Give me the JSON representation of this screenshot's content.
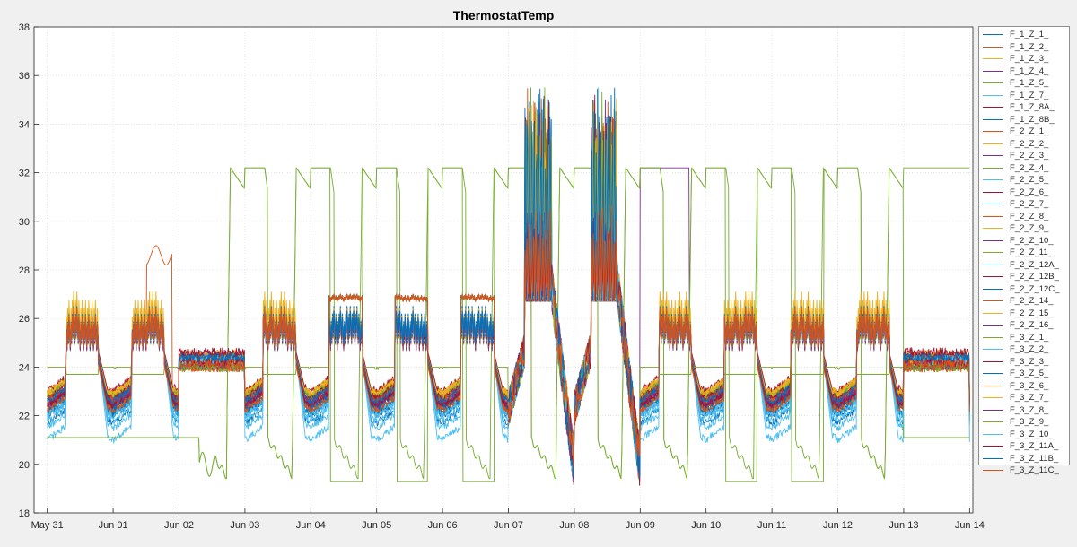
{
  "chart_data": {
    "type": "line",
    "title": "ThermostatTemp",
    "xlabel": "",
    "ylabel": "",
    "ylim": [
      18,
      38
    ],
    "yticks": [
      18,
      20,
      22,
      24,
      26,
      28,
      30,
      32,
      34,
      36,
      38
    ],
    "x_tick_labels": [
      "May 31",
      "Jun 01",
      "Jun 02",
      "Jun 03",
      "Jun 04",
      "Jun 05",
      "Jun 06",
      "Jun 07",
      "Jun 08",
      "Jun 09",
      "Jun 10",
      "Jun 11",
      "Jun 12",
      "Jun 13",
      "Jun 14"
    ],
    "xlim_days": [
      -0.2,
      14.05
    ],
    "grid": true,
    "legend_position": "outside-right",
    "series": [
      {
        "name": "F_1_Z_1_",
        "color": "#0072bd",
        "base": 24.3,
        "amp": 2.3,
        "dip": 21.7,
        "extra": "none"
      },
      {
        "name": "F_1_Z_2_",
        "color": "#d95319",
        "base": 24.0,
        "amp": 2.6,
        "dip": 22.2,
        "extra": "spike2"
      },
      {
        "name": "F_1_Z_3_",
        "color": "#edb120",
        "base": 24.2,
        "amp": 2.4,
        "dip": 22.5,
        "extra": "none"
      },
      {
        "name": "F_1_Z_4_",
        "color": "#7e2f8e",
        "base": 24.1,
        "amp": 2.2,
        "dip": 22.8,
        "extra": "plateau"
      },
      {
        "name": "F_1_Z_5_",
        "color": "#77ac30",
        "base": 24.0,
        "amp": 0.0,
        "dip": 24.0,
        "extra": "setback"
      },
      {
        "name": "F_1_Z_7_",
        "color": "#4dbeee",
        "base": 24.4,
        "amp": 2.0,
        "dip": 21.0,
        "extra": "none"
      },
      {
        "name": "F_1_Z_8A_",
        "color": "#a2142f",
        "base": 24.5,
        "amp": 1.6,
        "dip": 22.8,
        "extra": "none"
      },
      {
        "name": "F_1_Z_8B_",
        "color": "#0072bd",
        "base": 24.2,
        "amp": 2.5,
        "dip": 22.0,
        "extra": "none"
      },
      {
        "name": "F_2_Z_1_",
        "color": "#d95319",
        "base": 24.0,
        "amp": 2.8,
        "dip": 22.4,
        "extra": "spike1"
      },
      {
        "name": "F_2_Z_2_",
        "color": "#edb120",
        "base": 24.3,
        "amp": 2.1,
        "dip": 22.9,
        "extra": "none"
      },
      {
        "name": "F_2_Z_3_",
        "color": "#7e2f8e",
        "base": 24.1,
        "amp": 2.4,
        "dip": 22.6,
        "extra": "none"
      },
      {
        "name": "F_2_Z_4_",
        "color": "#77ac30",
        "base": 24.0,
        "amp": 0.0,
        "dip": 24.0,
        "extra": "setback2"
      },
      {
        "name": "F_2_Z_5_",
        "color": "#4dbeee",
        "base": 24.2,
        "amp": 2.0,
        "dip": 22.1,
        "extra": "none"
      },
      {
        "name": "F_2_Z_6_",
        "color": "#a2142f",
        "base": 24.4,
        "amp": 2.2,
        "dip": 22.4,
        "extra": "none"
      },
      {
        "name": "F_2_Z_7_",
        "color": "#0072bd",
        "base": 24.2,
        "amp": 2.6,
        "dip": 22.3,
        "extra": "none"
      },
      {
        "name": "F_2_Z_8_",
        "color": "#d95319",
        "base": 24.1,
        "amp": 2.3,
        "dip": 22.5,
        "extra": "none"
      },
      {
        "name": "F_2_Z_9_",
        "color": "#edb120",
        "base": 24.5,
        "amp": 2.9,
        "dip": 22.9,
        "extra": "none"
      },
      {
        "name": "F_2_Z_10_",
        "color": "#7e2f8e",
        "base": 24.3,
        "amp": 2.1,
        "dip": 22.7,
        "extra": "none"
      },
      {
        "name": "F_2_Z_11_",
        "color": "#77ac30",
        "base": 24.2,
        "amp": 2.0,
        "dip": 22.8,
        "extra": "none"
      },
      {
        "name": "F_2_Z_12A_",
        "color": "#4dbeee",
        "base": 24.3,
        "amp": 2.4,
        "dip": 21.5,
        "extra": "none"
      },
      {
        "name": "F_2_Z_12B_",
        "color": "#a2142f",
        "base": 24.6,
        "amp": 1.8,
        "dip": 23.0,
        "extra": "none"
      },
      {
        "name": "F_2_Z_12C_",
        "color": "#0072bd",
        "base": 24.1,
        "amp": 2.7,
        "dip": 22.1,
        "extra": "none"
      },
      {
        "name": "F_2_Z_14_",
        "color": "#d95319",
        "base": 24.0,
        "amp": 2.5,
        "dip": 22.6,
        "extra": "none"
      },
      {
        "name": "F_2_Z_15_",
        "color": "#edb120",
        "base": 24.2,
        "amp": 2.2,
        "dip": 22.9,
        "extra": "none"
      },
      {
        "name": "F_2_Z_16_",
        "color": "#7e2f8e",
        "base": 24.1,
        "amp": 2.6,
        "dip": 22.4,
        "extra": "none"
      },
      {
        "name": "F_3_Z_1_",
        "color": "#77ac30",
        "base": 24.3,
        "amp": 2.1,
        "dip": 22.8,
        "extra": "none"
      },
      {
        "name": "F_3_Z_2_",
        "color": "#4dbeee",
        "base": 24.2,
        "amp": 2.3,
        "dip": 22.0,
        "extra": "none"
      },
      {
        "name": "F_3_Z_3_",
        "color": "#a2142f",
        "base": 24.4,
        "amp": 2.0,
        "dip": 22.7,
        "extra": "none"
      },
      {
        "name": "F_3_Z_5_",
        "color": "#0072bd",
        "base": 24.1,
        "amp": 2.4,
        "dip": 22.3,
        "extra": "none"
      },
      {
        "name": "F_3_Z_6_",
        "color": "#d95319",
        "base": 24.3,
        "amp": 2.2,
        "dip": 22.6,
        "extra": "none"
      },
      {
        "name": "F_3_Z_7_",
        "color": "#edb120",
        "base": 24.2,
        "amp": 2.5,
        "dip": 22.9,
        "extra": "none"
      },
      {
        "name": "F_3_Z_8_",
        "color": "#7e2f8e",
        "base": 24.1,
        "amp": 2.3,
        "dip": 22.5,
        "extra": "none"
      },
      {
        "name": "F_3_Z_9_",
        "color": "#77ac30",
        "base": 24.0,
        "amp": 0.0,
        "dip": 24.0,
        "extra": "none"
      },
      {
        "name": "F_3_Z_10_",
        "color": "#4dbeee",
        "base": 24.3,
        "amp": 2.1,
        "dip": 21.8,
        "extra": "none"
      },
      {
        "name": "F_3_Z_11A_",
        "color": "#a2142f",
        "base": 24.2,
        "amp": 2.4,
        "dip": 22.4,
        "extra": "none"
      },
      {
        "name": "F_3_Z_11B_",
        "color": "#0072bd",
        "base": 24.4,
        "amp": 2.2,
        "dip": 22.6,
        "extra": "none"
      },
      {
        "name": "F_3_Z_11C_",
        "color": "#d95319",
        "base": 24.1,
        "amp": 2.6,
        "dip": 22.2,
        "extra": "none"
      }
    ]
  }
}
